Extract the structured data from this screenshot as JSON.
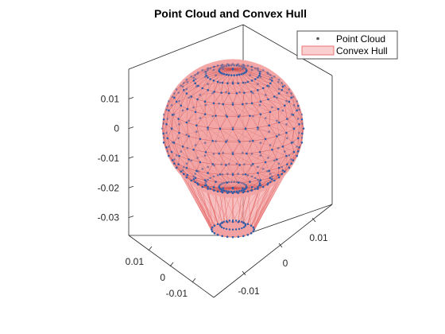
{
  "chart_data": {
    "type": "scatter",
    "title": "Point Cloud and Convex Hull",
    "projection": "3d",
    "legend": {
      "placement": "top-right",
      "entries": [
        "Point Cloud",
        "Convex Hull"
      ]
    },
    "colors": {
      "point": "#2F5DA8",
      "hull_edge": "#E45A5A",
      "hull_face": "#F2A2A2",
      "axis": "#262626"
    },
    "axes": {
      "x_ticks": [
        "0.01",
        "0",
        "-0.01"
      ],
      "y_ticks": [
        "-0.01",
        "0",
        "0.01"
      ],
      "z_ticks": [
        "0.01",
        "0",
        "-0.01",
        "-0.02",
        "-0.03"
      ],
      "zlim": [
        -0.036,
        0.02
      ]
    },
    "series": [
      {
        "name": "Point Cloud",
        "shape": "sphere plus lower ring",
        "sphere": {
          "center_z": 0.0,
          "radius": 0.02
        },
        "ring": {
          "z": -0.034,
          "radius": 0.006
        }
      },
      {
        "name": "Convex Hull",
        "shape": "convex hull of point cloud"
      }
    ]
  }
}
